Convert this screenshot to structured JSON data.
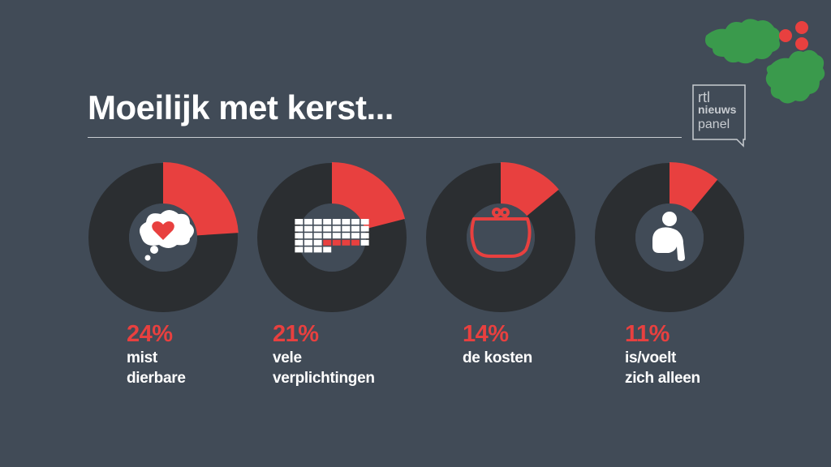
{
  "title": "Moeilijk met kerst...",
  "logo": {
    "line1": "rtl",
    "line2": "nieuws",
    "line3": "panel"
  },
  "colors": {
    "background": "#414b57",
    "ring": "#2b2e31",
    "accent": "#e8403f",
    "text": "#ffffff",
    "holly": "#3a9a4c"
  },
  "chart_data": {
    "type": "donut",
    "unit": "%",
    "items": [
      {
        "percent_label": "24%",
        "label_lines": [
          "mist",
          "dierbare"
        ],
        "value": 24,
        "icon": "thought-heart-icon"
      },
      {
        "percent_label": "21%",
        "label_lines": [
          "vele",
          "verplichtingen"
        ],
        "value": 21,
        "icon": "calendar-icon"
      },
      {
        "percent_label": "14%",
        "label_lines": [
          "de kosten"
        ],
        "value": 14,
        "icon": "purse-icon"
      },
      {
        "percent_label": "11%",
        "label_lines": [
          "is/voelt",
          "zich alleen"
        ],
        "value": 11,
        "icon": "sitting-person-icon"
      }
    ]
  }
}
